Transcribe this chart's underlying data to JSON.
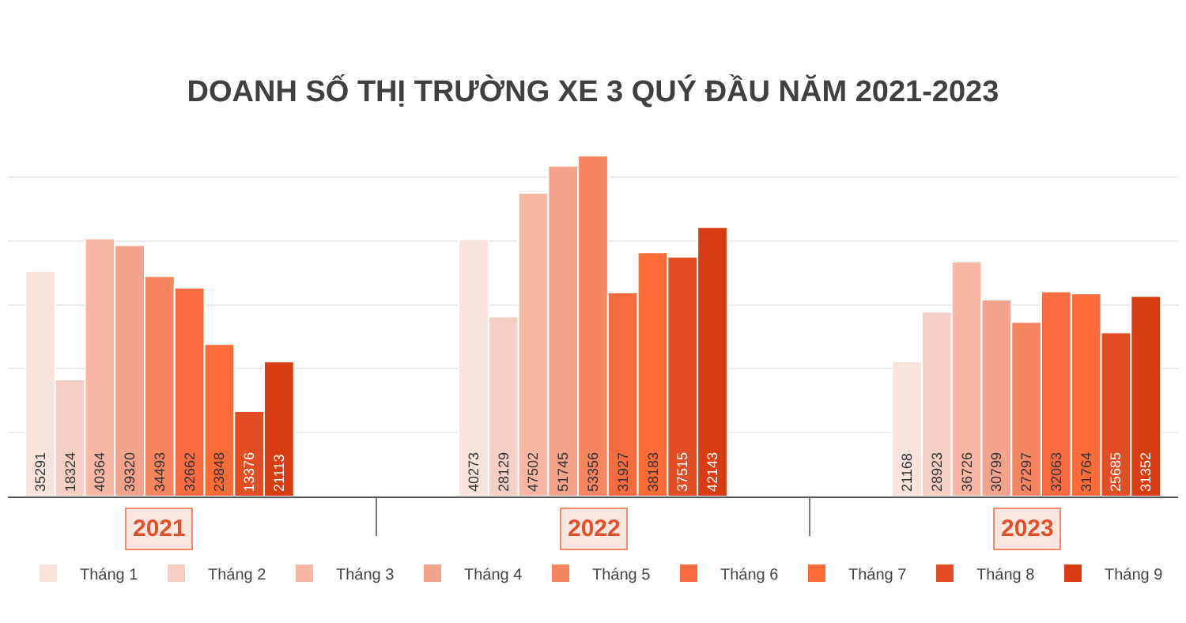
{
  "chart_data": {
    "type": "bar",
    "title": "DOANH SỐ THỊ TRƯỜNG XE 3 QUÝ ĐẦU NĂM 2021-2023",
    "categories": [
      "2021",
      "2022",
      "2023"
    ],
    "series": [
      {
        "name": "Tháng 1",
        "color": "#f9e3dd",
        "values": [
          35291,
          40273,
          21168
        ]
      },
      {
        "name": "Tháng 2",
        "color": "#f6cfc4",
        "values": [
          18324,
          28129,
          28923
        ]
      },
      {
        "name": "Tháng 3",
        "color": "#f8b8a4",
        "values": [
          40364,
          47502,
          36726
        ]
      },
      {
        "name": "Tháng 4",
        "color": "#f3a38b",
        "values": [
          39320,
          51745,
          30799
        ]
      },
      {
        "name": "Tháng 5",
        "color": "#f58660",
        "values": [
          34493,
          53356,
          27297
        ]
      },
      {
        "name": "Tháng 6",
        "color": "#f76b40",
        "values": [
          32662,
          31927,
          32063
        ]
      },
      {
        "name": "Tháng 7",
        "color": "#fb6c38",
        "values": [
          23848,
          38183,
          31764
        ]
      },
      {
        "name": "Tháng 8",
        "color": "#e34d24",
        "values": [
          13376,
          37515,
          25685
        ]
      },
      {
        "name": "Tháng 9",
        "color": "#d83c13",
        "values": [
          21113,
          42143,
          31352
        ]
      }
    ],
    "yticks": [
      {
        "value": 10000,
        "label": null
      },
      {
        "value": 20000,
        "label": null
      },
      {
        "value": 30000,
        "label": null
      },
      {
        "value": 40000,
        "label": null
      },
      {
        "value": 50000,
        "label": null
      }
    ],
    "grid": "y",
    "legend": "bottom",
    "data_labels": true
  }
}
